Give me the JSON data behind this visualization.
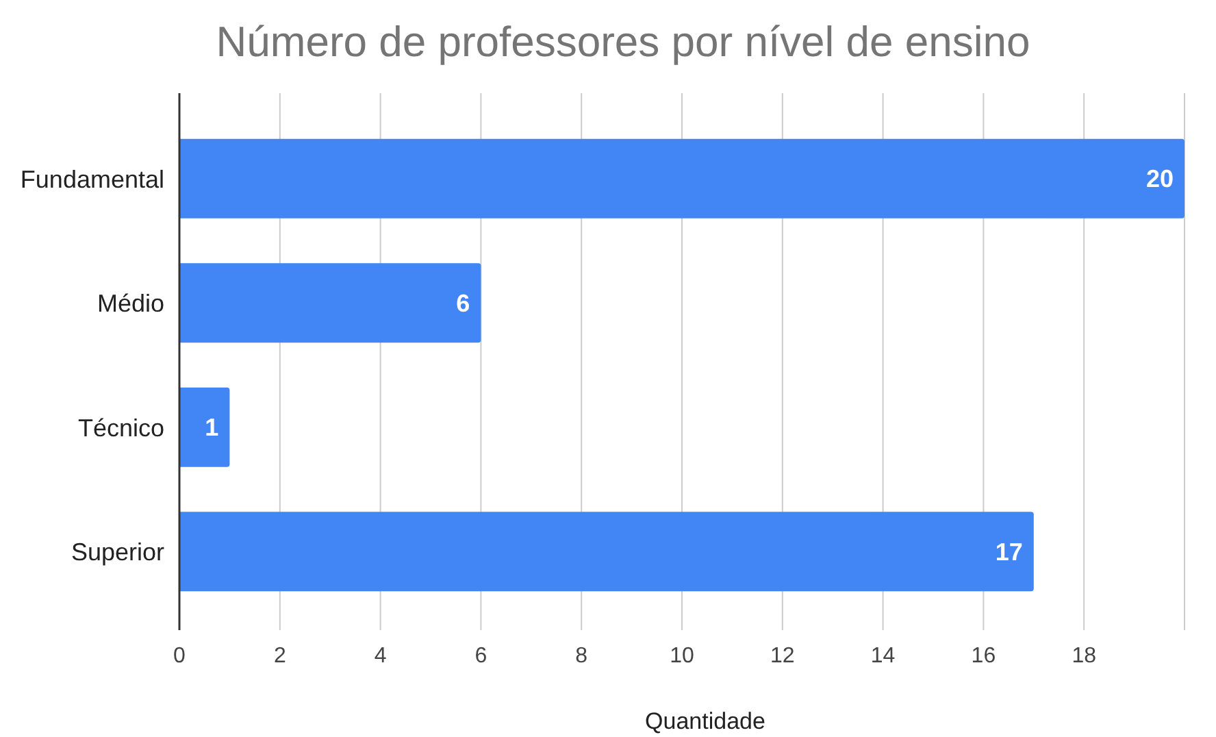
{
  "chart_data": {
    "type": "bar",
    "orientation": "horizontal",
    "title": "Número de professores por nível de ensino",
    "xlabel": "Quantidade",
    "categories": [
      "Fundamental",
      "Médio",
      "Técnico",
      "Superior"
    ],
    "values": [
      20,
      6,
      1,
      17
    ],
    "color": "#4285f4",
    "xlim": [
      0,
      20
    ],
    "xticks": [
      0,
      2,
      4,
      6,
      8,
      10,
      12,
      14,
      16,
      18
    ],
    "grid": "x",
    "data_labels": true
  }
}
